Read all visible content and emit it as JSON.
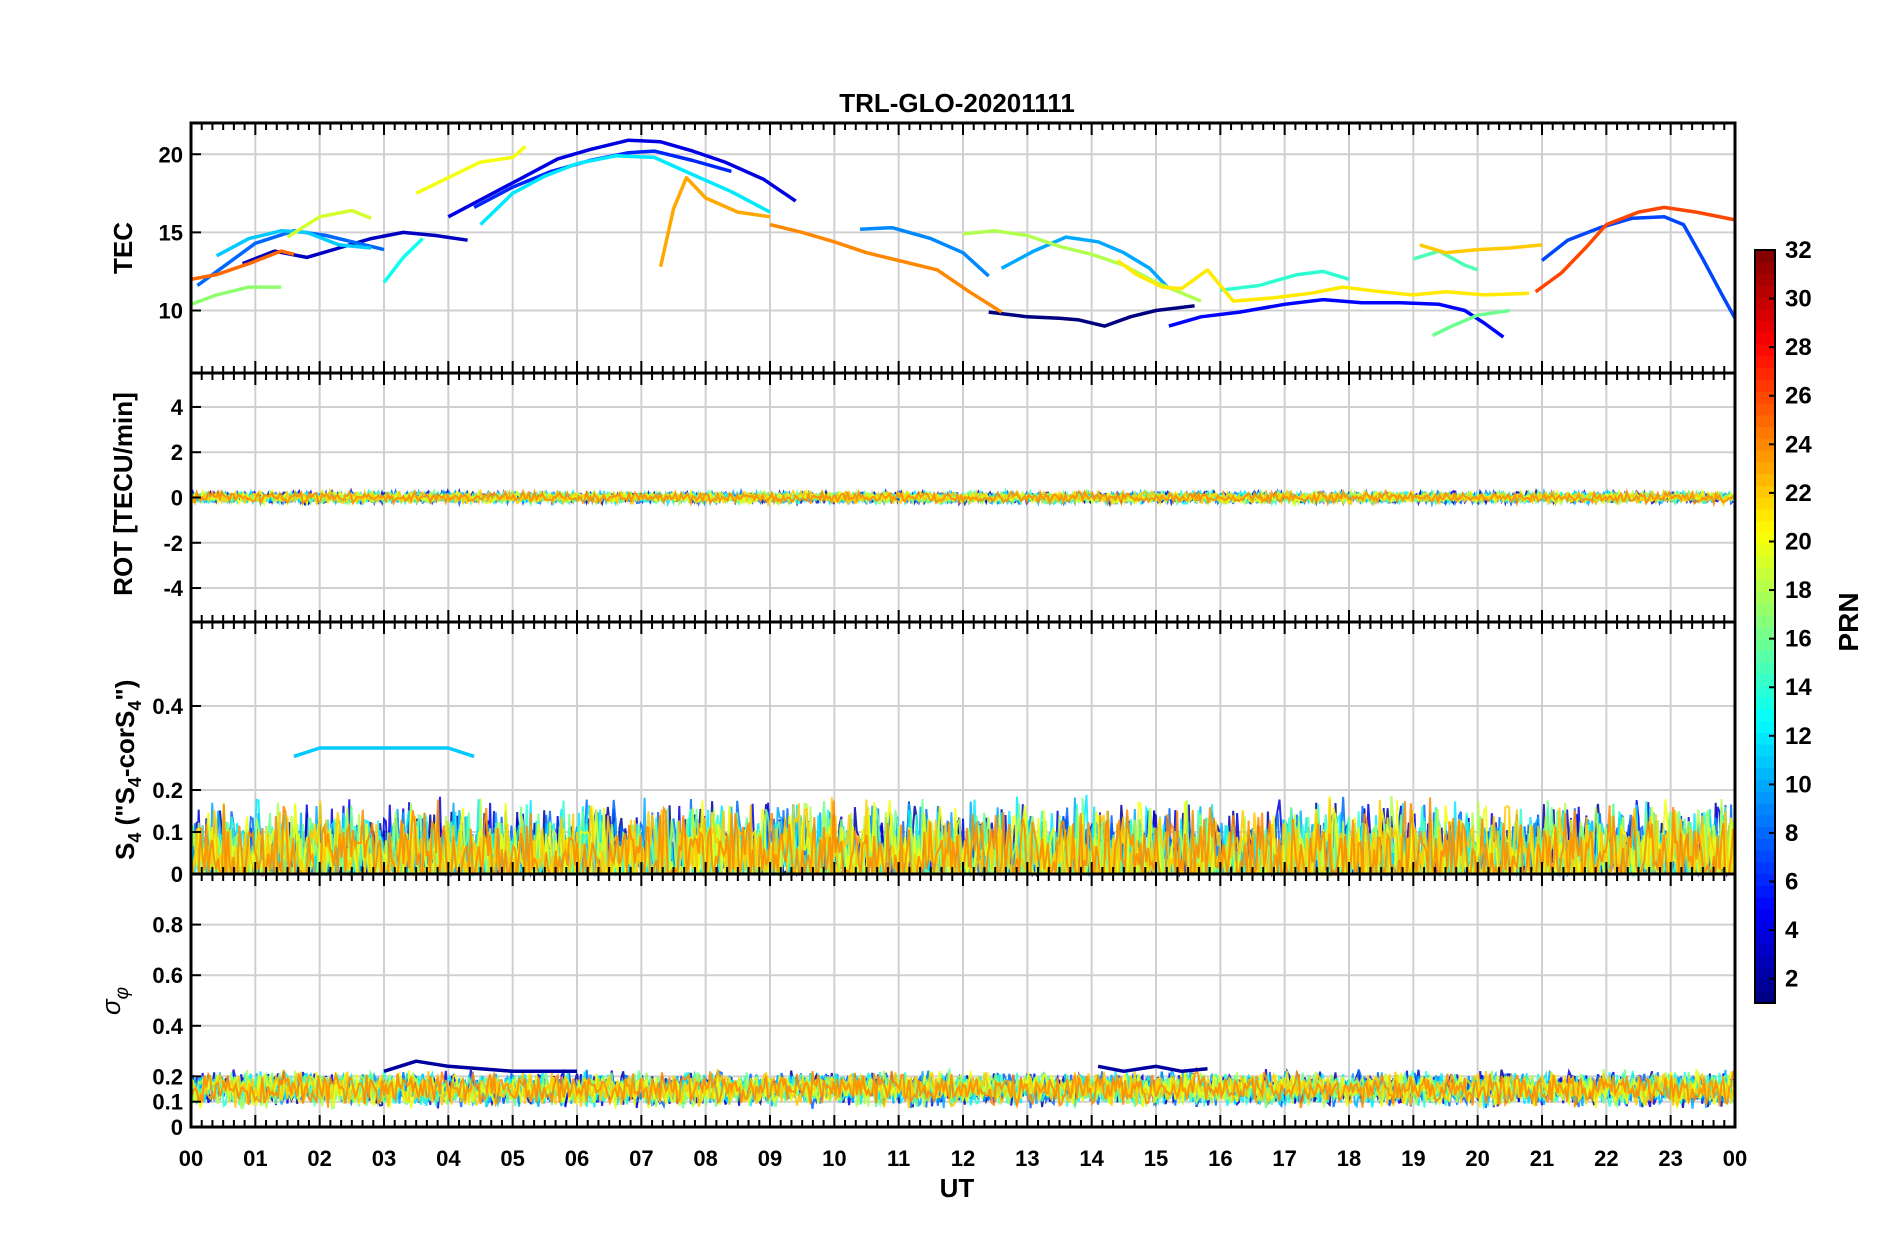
{
  "chart_data": {
    "type": "line",
    "title": "TRL-GLO-20201111",
    "xlabel": "UT",
    "x_ticks": [
      "00",
      "01",
      "02",
      "03",
      "04",
      "05",
      "06",
      "07",
      "08",
      "09",
      "10",
      "11",
      "12",
      "13",
      "14",
      "15",
      "16",
      "17",
      "18",
      "19",
      "20",
      "21",
      "22",
      "23",
      "00"
    ],
    "xlim": [
      0,
      24
    ],
    "colorbar": {
      "label": "PRN",
      "range": [
        1,
        32
      ],
      "ticks": [
        "2",
        "4",
        "6",
        "8",
        "10",
        "12",
        "14",
        "16",
        "18",
        "20",
        "22",
        "24",
        "26",
        "28",
        "30",
        "32"
      ],
      "colormap": "jet"
    },
    "panels": [
      {
        "name": "tec",
        "ylabel": "TEC",
        "ylim": [
          6,
          22
        ],
        "y_ticks": [
          "10",
          "15",
          "20"
        ],
        "series": [
          {
            "prn": 1,
            "points": [
              [
                12.4,
                9.9
              ],
              [
                13.0,
                9.6
              ],
              [
                13.5,
                9.5
              ],
              [
                13.8,
                9.4
              ],
              [
                14.2,
                9.0
              ],
              [
                14.6,
                9.6
              ],
              [
                15.0,
                10.0
              ],
              [
                15.6,
                10.3
              ]
            ]
          },
          {
            "prn": 3,
            "points": [
              [
                0.8,
                13.0
              ],
              [
                1.3,
                13.8
              ],
              [
                1.8,
                13.4
              ],
              [
                2.3,
                14.0
              ],
              [
                2.8,
                14.6
              ],
              [
                3.3,
                15.0
              ],
              [
                3.8,
                14.8
              ],
              [
                4.3,
                14.5
              ]
            ]
          },
          {
            "prn": 4,
            "points": [
              [
                4.0,
                16.0
              ],
              [
                4.6,
                17.3
              ],
              [
                5.2,
                18.6
              ],
              [
                5.7,
                19.7
              ],
              [
                6.2,
                20.3
              ],
              [
                6.8,
                20.9
              ],
              [
                7.3,
                20.8
              ],
              [
                7.8,
                20.2
              ],
              [
                8.3,
                19.5
              ],
              [
                8.9,
                18.4
              ],
              [
                9.4,
                17.0
              ]
            ]
          },
          {
            "prn": 5,
            "points": [
              [
                15.2,
                9.0
              ],
              [
                15.7,
                9.6
              ],
              [
                16.3,
                9.9
              ],
              [
                17.0,
                10.4
              ],
              [
                17.6,
                10.7
              ],
              [
                18.2,
                10.5
              ],
              [
                18.8,
                10.5
              ],
              [
                19.4,
                10.4
              ],
              [
                19.8,
                10.0
              ],
              [
                20.1,
                9.2
              ],
              [
                20.4,
                8.3
              ]
            ]
          },
          {
            "prn": 6,
            "points": [
              [
                4.4,
                16.6
              ],
              [
                5.0,
                17.9
              ],
              [
                5.6,
                18.9
              ],
              [
                6.2,
                19.6
              ],
              [
                6.8,
                20.1
              ],
              [
                7.2,
                20.2
              ],
              [
                7.8,
                19.6
              ],
              [
                8.4,
                18.9
              ]
            ]
          },
          {
            "prn": 7,
            "points": [
              [
                21.0,
                13.2
              ],
              [
                21.4,
                14.5
              ],
              [
                21.9,
                15.3
              ],
              [
                22.4,
                15.9
              ],
              [
                22.9,
                16.0
              ],
              [
                23.2,
                15.5
              ],
              [
                23.5,
                13.3
              ],
              [
                23.8,
                11.0
              ],
              [
                24.0,
                9.5
              ]
            ]
          },
          {
            "prn": 8,
            "points": [
              [
                0.1,
                11.6
              ],
              [
                0.5,
                12.8
              ],
              [
                1.0,
                14.3
              ],
              [
                1.6,
                15.1
              ],
              [
                2.1,
                14.8
              ],
              [
                2.6,
                14.3
              ],
              [
                3.0,
                13.9
              ]
            ]
          },
          {
            "prn": 9,
            "points": [
              [
                10.4,
                15.2
              ],
              [
                10.9,
                15.3
              ],
              [
                11.5,
                14.6
              ],
              [
                12.0,
                13.7
              ],
              [
                12.4,
                12.2
              ]
            ]
          },
          {
            "prn": 10,
            "points": [
              [
                12.6,
                12.7
              ],
              [
                13.1,
                13.8
              ],
              [
                13.6,
                14.7
              ],
              [
                14.1,
                14.4
              ],
              [
                14.5,
                13.7
              ],
              [
                14.9,
                12.7
              ],
              [
                15.2,
                11.4
              ]
            ]
          },
          {
            "prn": 11,
            "points": [
              [
                0.4,
                13.5
              ],
              [
                0.9,
                14.6
              ],
              [
                1.4,
                15.1
              ],
              [
                1.8,
                15.0
              ],
              [
                2.3,
                14.2
              ],
              [
                2.8,
                14.0
              ]
            ]
          },
          {
            "prn": 12,
            "points": [
              [
                4.5,
                15.5
              ],
              [
                5.0,
                17.5
              ],
              [
                5.5,
                18.6
              ],
              [
                6.0,
                19.4
              ],
              [
                6.6,
                19.9
              ],
              [
                7.2,
                19.8
              ],
              [
                7.8,
                18.7
              ],
              [
                8.4,
                17.6
              ],
              [
                9.0,
                16.3
              ]
            ]
          },
          {
            "prn": 13,
            "points": [
              [
                3.0,
                11.8
              ],
              [
                3.3,
                13.4
              ],
              [
                3.6,
                14.6
              ]
            ]
          },
          {
            "prn": 14,
            "points": [
              [
                16.0,
                11.3
              ],
              [
                16.6,
                11.6
              ],
              [
                17.2,
                12.3
              ],
              [
                17.6,
                12.5
              ],
              [
                18.0,
                12.0
              ]
            ]
          },
          {
            "prn": 15,
            "points": [
              [
                19.0,
                13.3
              ],
              [
                19.4,
                13.8
              ],
              [
                19.8,
                12.9
              ],
              [
                20.0,
                12.6
              ]
            ]
          },
          {
            "prn": 16,
            "points": [
              [
                19.3,
                8.4
              ],
              [
                19.6,
                9.0
              ],
              [
                20.0,
                9.7
              ],
              [
                20.5,
                10.0
              ]
            ]
          },
          {
            "prn": 17,
            "points": [
              [
                0.0,
                10.4
              ],
              [
                0.4,
                11.0
              ],
              [
                0.9,
                11.5
              ],
              [
                1.4,
                11.5
              ]
            ]
          },
          {
            "prn": 18,
            "points": [
              [
                12.0,
                14.9
              ],
              [
                12.5,
                15.1
              ],
              [
                13.0,
                14.8
              ],
              [
                13.5,
                14.1
              ],
              [
                14.0,
                13.6
              ],
              [
                14.5,
                12.9
              ],
              [
                15.0,
                11.8
              ],
              [
                15.7,
                10.6
              ]
            ]
          },
          {
            "prn": 19,
            "points": [
              [
                1.5,
                14.7
              ],
              [
                2.0,
                16.0
              ],
              [
                2.5,
                16.4
              ],
              [
                2.8,
                15.9
              ]
            ]
          },
          {
            "prn": 20,
            "points": [
              [
                3.5,
                17.5
              ],
              [
                4.0,
                18.5
              ],
              [
                4.5,
                19.5
              ],
              [
                5.0,
                19.8
              ],
              [
                5.2,
                20.5
              ]
            ]
          },
          {
            "prn": 21,
            "points": [
              [
                14.4,
                13.2
              ],
              [
                14.7,
                12.3
              ],
              [
                15.1,
                11.5
              ],
              [
                15.4,
                11.4
              ],
              [
                15.8,
                12.6
              ],
              [
                16.2,
                10.6
              ],
              [
                16.8,
                10.8
              ],
              [
                17.4,
                11.1
              ],
              [
                17.9,
                11.5
              ],
              [
                18.5,
                11.2
              ],
              [
                19.0,
                11.0
              ],
              [
                19.5,
                11.2
              ],
              [
                20.1,
                11.0
              ],
              [
                20.8,
                11.1
              ]
            ]
          },
          {
            "prn": 22,
            "points": [
              [
                19.1,
                14.2
              ],
              [
                19.5,
                13.7
              ],
              [
                20.0,
                13.9
              ],
              [
                20.5,
                14.0
              ],
              [
                21.0,
                14.2
              ]
            ]
          },
          {
            "prn": 23,
            "points": [
              [
                7.3,
                12.8
              ],
              [
                7.5,
                16.5
              ],
              [
                7.7,
                18.5
              ],
              [
                8.0,
                17.2
              ],
              [
                8.5,
                16.3
              ],
              [
                9.0,
                16.0
              ]
            ]
          },
          {
            "prn": 24,
            "points": [
              [
                9.0,
                15.5
              ],
              [
                9.5,
                15.0
              ],
              [
                10.0,
                14.4
              ],
              [
                10.5,
                13.7
              ],
              [
                11.0,
                13.2
              ],
              [
                11.6,
                12.6
              ],
              [
                12.1,
                11.2
              ],
              [
                12.6,
                9.9
              ]
            ]
          },
          {
            "prn": 25,
            "points": [
              [
                0.0,
                12.0
              ],
              [
                0.4,
                12.3
              ],
              [
                0.9,
                13.0
              ],
              [
                1.4,
                13.8
              ],
              [
                1.6,
                13.6
              ]
            ]
          },
          {
            "prn": 26,
            "points": [
              [
                20.9,
                11.2
              ],
              [
                21.3,
                12.4
              ],
              [
                21.7,
                14.1
              ],
              [
                22.0,
                15.5
              ],
              [
                22.5,
                16.3
              ],
              [
                22.9,
                16.6
              ],
              [
                23.4,
                16.3
              ],
              [
                24.0,
                15.8
              ]
            ]
          }
        ]
      },
      {
        "name": "rot",
        "ylabel": "ROT [TECU/min]",
        "ylim": [
          -5.5,
          5.5
        ],
        "y_ticks": [
          "-4",
          "-2",
          "0",
          "2",
          "4"
        ],
        "band": {
          "center": 0.0,
          "amplitude": 0.3
        }
      },
      {
        "name": "s4",
        "ylabel": "S4 (\"S4-corS4\")",
        "ylim": [
          0,
          0.6
        ],
        "y_ticks": [
          "0",
          "0.1",
          "0.2",
          "0.4"
        ],
        "band": {
          "center": 0.04,
          "amplitude": 0.15
        },
        "series": [
          {
            "prn": 11,
            "points": [
              [
                1.6,
                0.28
              ],
              [
                2.0,
                0.3
              ],
              [
                2.5,
                0.3
              ],
              [
                3.0,
                0.3
              ],
              [
                3.5,
                0.3
              ],
              [
                4.0,
                0.3
              ],
              [
                4.4,
                0.28
              ]
            ]
          }
        ]
      },
      {
        "name": "sigma-phi",
        "ylabel": "σφ",
        "ylim": [
          0,
          1.0
        ],
        "y_ticks": [
          "0",
          "0.1",
          "0.2",
          "0.4",
          "0.6",
          "0.8"
        ],
        "band": {
          "center": 0.15,
          "amplitude": 0.08
        },
        "series": [
          {
            "prn": 2,
            "points": [
              [
                3.0,
                0.22
              ],
              [
                3.5,
                0.26
              ],
              [
                4.0,
                0.24
              ],
              [
                4.5,
                0.23
              ],
              [
                5.0,
                0.22
              ],
              [
                5.5,
                0.22
              ],
              [
                6.0,
                0.22
              ]
            ]
          },
          {
            "prn": 2,
            "points": [
              [
                14.1,
                0.24
              ],
              [
                14.5,
                0.22
              ],
              [
                15.0,
                0.24
              ],
              [
                15.4,
                0.22
              ],
              [
                15.8,
                0.23
              ]
            ]
          }
        ]
      }
    ]
  }
}
